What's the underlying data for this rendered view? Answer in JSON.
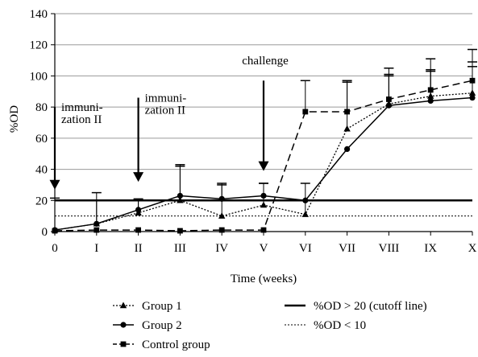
{
  "chart_data": {
    "type": "line",
    "xlabel": "Time (weeks)",
    "ylabel": "%OD",
    "ylim": [
      0,
      140
    ],
    "yticks": [
      0,
      20,
      40,
      60,
      80,
      100,
      120,
      140
    ],
    "categories": [
      "0",
      "I",
      "II",
      "III",
      "IV",
      "V",
      "VI",
      "VII",
      "VIII",
      "IX",
      "X"
    ],
    "grid": "horizontal",
    "legend_position": "bottom",
    "series": [
      {
        "name": "Group 1",
        "style": "dotted",
        "marker": "triangle",
        "color": "#000000",
        "values": [
          1,
          5,
          12,
          20,
          10,
          17,
          11,
          66,
          82,
          87,
          89
        ],
        "error": [
          0,
          15,
          8,
          22,
          20,
          14,
          20,
          30,
          18,
          16,
          20
        ]
      },
      {
        "name": "Group 2",
        "style": "solid",
        "marker": "circle",
        "color": "#000000",
        "values": [
          1,
          5,
          14,
          23,
          21,
          23,
          20,
          53,
          81,
          84,
          86
        ],
        "error": [
          0,
          20,
          7,
          20,
          10,
          8,
          0,
          0,
          20,
          20,
          20
        ]
      },
      {
        "name": "Control group",
        "style": "dashed",
        "marker": "square",
        "color": "#000000",
        "values": [
          0.5,
          1,
          1,
          0.5,
          1,
          1,
          77,
          77,
          85,
          91,
          97
        ],
        "error": [
          21,
          0,
          0,
          0,
          0,
          0,
          20,
          20,
          20,
          20,
          20
        ]
      }
    ],
    "reference_lines": [
      {
        "name": "%OD > 20 (cutoff line)",
        "y": 20,
        "style": "solid-thick"
      },
      {
        "name": "%OD < 10",
        "y": 10,
        "style": "dotted"
      }
    ],
    "annotations": [
      {
        "lines": [
          "immuni-",
          "zation II"
        ],
        "x": "0",
        "arrow_from": 80,
        "arrow_to": 28
      },
      {
        "lines": [
          "immuni-",
          "zation II"
        ],
        "x": "II",
        "arrow_from": 86,
        "arrow_to": 33
      },
      {
        "lines": [
          "challenge"
        ],
        "x": "V",
        "arrow_from": 97,
        "arrow_to": 40
      }
    ]
  }
}
